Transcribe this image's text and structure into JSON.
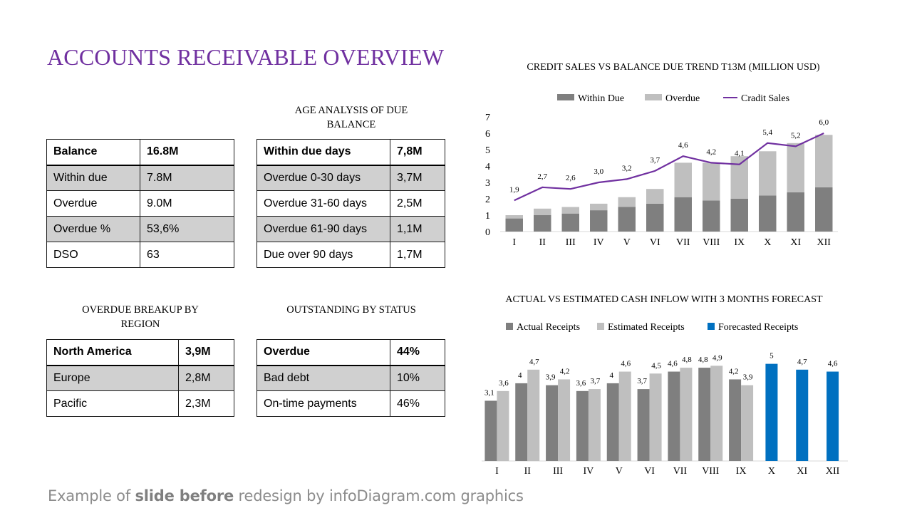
{
  "page": {
    "title": "ACCOUNTS RECEIVABLE OVERVIEW"
  },
  "age_analysis": {
    "heading_line1": "AGE ANALYSIS OF DUE",
    "heading_line2": "BALANCE",
    "rows": [
      [
        "Within due days",
        "7,8M"
      ],
      [
        "Overdue 0-30 days",
        "3,7M"
      ],
      [
        "Overdue 31-60 days",
        "2,5M"
      ],
      [
        "Overdue 61-90 days",
        "1,1M"
      ],
      [
        "Due over 90 days",
        "1,7M"
      ]
    ]
  },
  "balance_table": {
    "rows": [
      [
        "Balance",
        "16.8M"
      ],
      [
        "Within due",
        "7.8M"
      ],
      [
        "Overdue",
        "9.0M"
      ],
      [
        "Overdue %",
        "53,6%"
      ],
      [
        "DSO",
        "63"
      ]
    ]
  },
  "region_breakup": {
    "heading_line1": "OVERDUE BREAKUP BY",
    "heading_line2": "REGION",
    "rows": [
      [
        "North America",
        "3,9M"
      ],
      [
        "Europe",
        "2,8M"
      ],
      [
        "Pacific",
        "2,3M"
      ]
    ]
  },
  "status": {
    "heading": "OUTSTANDING BY STATUS",
    "rows": [
      [
        "Overdue",
        "44%"
      ],
      [
        "Bad debt",
        "10%"
      ],
      [
        "On-time payments",
        "46%"
      ]
    ]
  },
  "footer": {
    "prefix": "Example of ",
    "bold": "slide before",
    "suffix": " redesign by infoDiagram.com graphics"
  },
  "colors": {
    "title": "#7030a0",
    "dark_gray": "#7f7f7f",
    "light_gray": "#bfbfbf",
    "line": "#7030a0",
    "blue": "#0070c0"
  },
  "chart_data": [
    {
      "type": "bar",
      "stacked": true,
      "title": "CREDIT SALES VS BALANCE DUE TREND T13M (MILLION USD)",
      "categories": [
        "I",
        "II",
        "III",
        "IV",
        "V",
        "VI",
        "VII",
        "VIII",
        "IX",
        "X",
        "XI",
        "XII"
      ],
      "series": [
        {
          "name": "Within Due",
          "type": "bar",
          "color": "#7f7f7f",
          "values": [
            0.8,
            1.0,
            1.1,
            1.3,
            1.5,
            1.7,
            2.1,
            1.9,
            2.0,
            2.2,
            2.4,
            2.7
          ]
        },
        {
          "name": "Overdue",
          "type": "bar",
          "color": "#bfbfbf",
          "values": [
            0.2,
            0.4,
            0.4,
            0.4,
            0.6,
            0.9,
            2.1,
            2.3,
            2.6,
            2.7,
            3.0,
            3.2
          ]
        },
        {
          "name": "Cradit Sales",
          "type": "line",
          "color": "#7030a0",
          "values": [
            1.9,
            2.7,
            2.6,
            3.0,
            3.2,
            3.7,
            4.6,
            4.2,
            4.1,
            5.4,
            5.2,
            6.0
          ],
          "labels": [
            "1,9",
            "2,7",
            "2,6",
            "3,0",
            "3,2",
            "3,7",
            "4,6",
            "4,2",
            "4,1",
            "5,4",
            "5,2",
            "6,0"
          ]
        }
      ],
      "yticks": [
        "0",
        "1",
        "2",
        "3",
        "4",
        "5",
        "6",
        "7"
      ],
      "ylim": [
        0,
        7
      ],
      "grid": false,
      "legend": "top"
    },
    {
      "type": "bar",
      "title": "ACTUAL VS ESTIMATED  CASH INFLOW WITH 3 MONTHS FORECAST",
      "categories": [
        "I",
        "II",
        "III",
        "IV",
        "V",
        "VI",
        "VII",
        "VIII",
        "IX",
        "X",
        "XI",
        "XII"
      ],
      "series": [
        {
          "name": "Actual  Receipts",
          "color": "#7f7f7f",
          "values": [
            3.1,
            4,
            3.9,
            3.6,
            4,
            3.7,
            4.6,
            4.8,
            4.2,
            null,
            null,
            null
          ],
          "labels": [
            "3,1",
            "4",
            "3,9",
            "3,6",
            "4",
            "3,7",
            "4,6",
            "4,8",
            "4,2",
            "",
            "",
            ""
          ]
        },
        {
          "name": "Estimated  Receipts",
          "color": "#bfbfbf",
          "values": [
            3.6,
            4.7,
            4.2,
            3.7,
            4.6,
            4.5,
            4.8,
            4.9,
            3.9,
            null,
            null,
            null
          ],
          "labels": [
            "3,6",
            "4,7",
            "4,2",
            "3,7",
            "4,6",
            "4,5",
            "4,8",
            "4,9",
            "3,9",
            "",
            "",
            ""
          ]
        },
        {
          "name": "Forecasted Receipts",
          "color": "#0070c0",
          "values": [
            null,
            null,
            null,
            null,
            null,
            null,
            null,
            null,
            null,
            5,
            4.7,
            4.6
          ],
          "labels": [
            "",
            "",
            "",
            "",
            "",
            "",
            "",
            "",
            "",
            "5",
            "4,7",
            "4,6"
          ]
        }
      ],
      "ylim": [
        0,
        5.5
      ],
      "grid": false,
      "legend": "top"
    }
  ]
}
